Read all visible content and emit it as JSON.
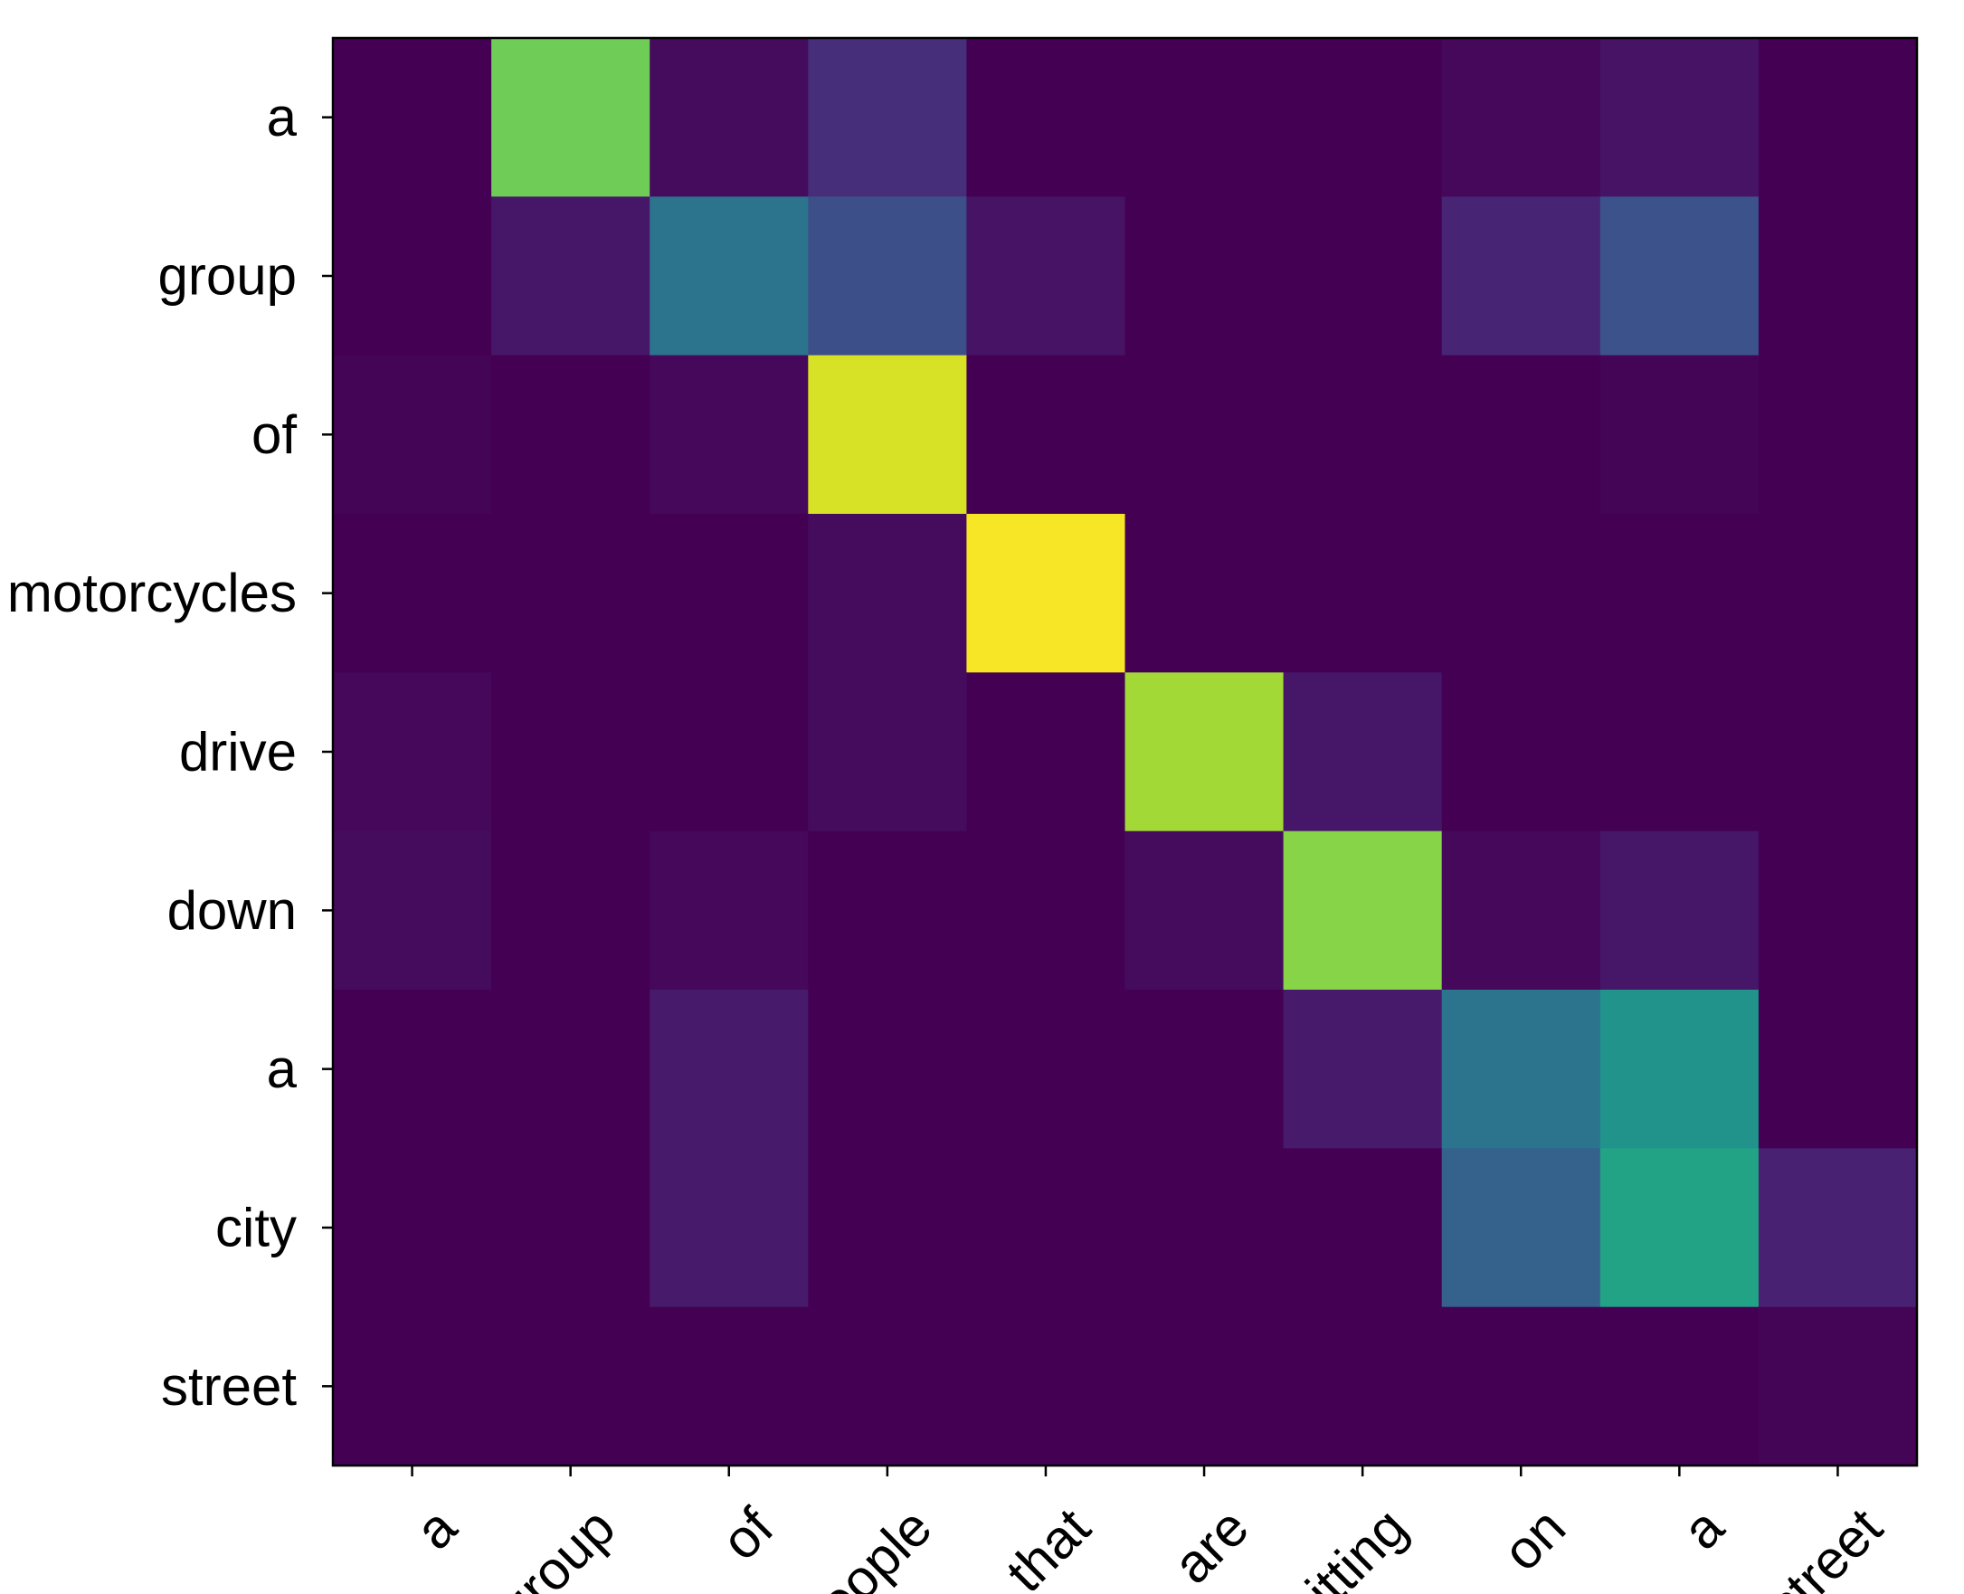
{
  "chart_data": {
    "type": "heatmap",
    "title": "",
    "xlabel": "",
    "ylabel": "",
    "colormap": "viridis",
    "value_range": [
      0,
      1
    ],
    "grid": false,
    "legend": "none",
    "x_categories": [
      "a",
      "group",
      "of",
      "people",
      "that",
      "are",
      "sitting",
      "on",
      "a",
      "street"
    ],
    "y_categories": [
      "a",
      "group",
      "of",
      "motorcycles",
      "drive",
      "down",
      "a",
      "city",
      "street"
    ],
    "values": [
      [
        0.0,
        0.78,
        0.03,
        0.13,
        0.0,
        0.0,
        0.0,
        0.02,
        0.05,
        0.0
      ],
      [
        0.0,
        0.06,
        0.38,
        0.24,
        0.05,
        0.0,
        0.0,
        0.1,
        0.25,
        0.0
      ],
      [
        0.01,
        0.0,
        0.02,
        0.94,
        0.0,
        0.0,
        0.0,
        0.0,
        0.01,
        0.0
      ],
      [
        0.0,
        0.0,
        0.0,
        0.03,
        0.99,
        0.0,
        0.0,
        0.0,
        0.0,
        0.0
      ],
      [
        0.02,
        0.0,
        0.0,
        0.03,
        0.0,
        0.86,
        0.06,
        0.0,
        0.0,
        0.0
      ],
      [
        0.03,
        0.0,
        0.02,
        0.0,
        0.0,
        0.03,
        0.82,
        0.02,
        0.06,
        0.0
      ],
      [
        0.0,
        0.0,
        0.07,
        0.0,
        0.0,
        0.0,
        0.07,
        0.38,
        0.51,
        0.0
      ],
      [
        0.0,
        0.0,
        0.07,
        0.0,
        0.0,
        0.0,
        0.0,
        0.31,
        0.58,
        0.09
      ],
      [
        0.0,
        0.0,
        0.0,
        0.0,
        0.0,
        0.0,
        0.0,
        0.0,
        0.0,
        0.01
      ]
    ]
  }
}
